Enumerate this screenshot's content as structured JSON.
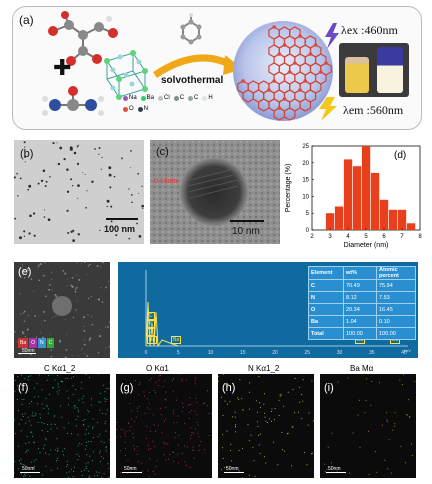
{
  "panel_a": {
    "label": "(a)",
    "plus": "✚",
    "arrow_text": "solvothermal",
    "legend": [
      {
        "symbol": "Na",
        "color": "#9b59b6"
      },
      {
        "symbol": "Ba",
        "color": "#2ecc71"
      },
      {
        "symbol": "Cl",
        "color": "#bdc3c7"
      },
      {
        "symbol": "C",
        "color": "#7f8c8d"
      },
      {
        "symbol": "C",
        "color": "#95a5a6"
      },
      {
        "symbol": "H",
        "color": "#dfe6e9"
      },
      {
        "symbol": "O",
        "color": "#e74c3c"
      },
      {
        "symbol": "N",
        "color": "#2c3e50"
      }
    ],
    "lambda_ex": "λex :460nm",
    "lambda_em": "λem :560nm"
  },
  "panel_b": {
    "label": "(b)",
    "scale": "100 nm"
  },
  "panel_c": {
    "label": "(c)",
    "scale": "10 nm",
    "lattice": "0.19nm"
  },
  "panel_d": {
    "label": "(d)",
    "chart_data": {
      "type": "bar",
      "xlabel": "Diameter (nm)",
      "ylabel": "Percentage (%)",
      "xlim": [
        2,
        8
      ],
      "ylim": [
        0,
        25
      ],
      "xticks": [
        2,
        3,
        4,
        5,
        6,
        7,
        8
      ],
      "yticks": [
        0,
        5,
        10,
        15,
        20,
        25
      ],
      "bin_centers": [
        3.0,
        3.5,
        4.0,
        4.5,
        5.0,
        5.5,
        6.0,
        6.5,
        7.0,
        7.5
      ],
      "values": [
        5,
        7,
        21,
        19,
        25,
        17,
        9,
        6,
        6,
        2
      ],
      "bar_color": "#e8401c"
    }
  },
  "panel_e": {
    "label": "(e)",
    "scale": "50nm",
    "mini_labels": [
      "Ba",
      "O",
      "N",
      "C"
    ],
    "spectrum_scale": "keV",
    "spectrum_xticks": [
      "0",
      "5",
      "10",
      "15",
      "20",
      "25",
      "30",
      "35",
      "40"
    ],
    "peaks": [
      "C",
      "N",
      "O",
      "Ba",
      "Ba",
      "Ba",
      "Ba"
    ],
    "table": {
      "headers": [
        "Element",
        "wt%",
        "Atomic percent"
      ],
      "rows": [
        [
          "C",
          "70.49",
          "75.94"
        ],
        [
          "N",
          "8.12",
          "7.53"
        ],
        [
          "O",
          "20.34",
          "16.45"
        ],
        [
          "Ba",
          "1.04",
          "0.10"
        ],
        [
          "Total",
          "100.00",
          "100.00"
        ]
      ]
    }
  },
  "maps": [
    {
      "label": "(f)",
      "title": "C Kα1_2",
      "scale": "50nm",
      "dot": "#2ac6a0"
    },
    {
      "label": "(g)",
      "title": "O Kα1",
      "scale": "50nm",
      "dot": "#cc2d8f"
    },
    {
      "label": "(h)",
      "title": "N Kα1_2",
      "scale": "50nm",
      "dot": "#c9e22d"
    },
    {
      "label": "(i)",
      "title": "Ba Mα",
      "scale": "50nm",
      "dot": "#c99a2a"
    }
  ]
}
